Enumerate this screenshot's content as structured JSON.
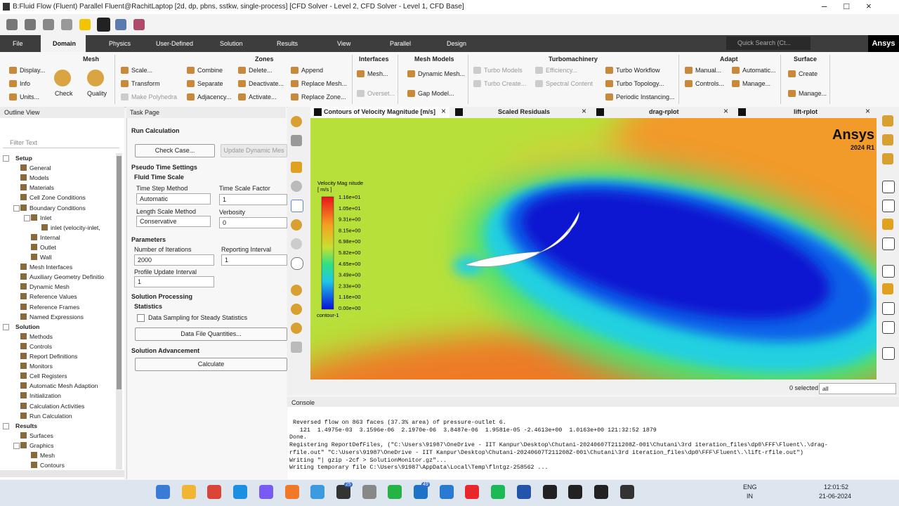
{
  "title_bar": {
    "title": "B:Fluid Flow (Fluent) Parallel Fluent@RachitLaptop  [2d, dp, pbns, sstkw, single-process] [CFD Solver - Level 2, CFD Solver - Level 1, CFD Base]"
  },
  "ribbon_tabs": [
    "File",
    "Domain",
    "Physics",
    "User-Defined",
    "Solution",
    "Results",
    "View",
    "Parallel",
    "Design"
  ],
  "search": "Quick Search (Ct...",
  "brand": "Ansys",
  "ribbon": {
    "groups": [
      {
        "title": "Mesh",
        "items": [
          "Display...",
          "Info",
          "Units...",
          "Check",
          "Quality"
        ]
      },
      {
        "title": "Zones",
        "items": [
          "Scale...",
          "Transform",
          "Make Polyhedra",
          "Combine",
          "Separate",
          "Adjacency...",
          "Delete...",
          "Deactivate...",
          "Activate...",
          "Append",
          "Replace Mesh...",
          "Replace Zone..."
        ]
      },
      {
        "title": "Interfaces",
        "items": [
          "Mesh...",
          "Overset..."
        ]
      },
      {
        "title": "Mesh Models",
        "items": [
          "Dynamic Mesh...",
          "Gap Model..."
        ]
      },
      {
        "title": "Turbomachinery",
        "items": [
          "Turbo Models",
          "Turbo Create...",
          "Efficiency...",
          "Spectral Content",
          "Turbo Workflow",
          "Turbo Topology...",
          "Periodic Instancing..."
        ]
      },
      {
        "title": "Adapt",
        "items": [
          "Manual...",
          "Controls...",
          "Automatic...",
          "Manage..."
        ]
      },
      {
        "title": "Surface",
        "items": [
          "Create",
          "Manage..."
        ]
      }
    ]
  },
  "outline": {
    "title": "Outline View",
    "filter": "Filter Text",
    "tree": [
      {
        "label": "Setup",
        "children": [
          {
            "label": "General"
          },
          {
            "label": "Models"
          },
          {
            "label": "Materials"
          },
          {
            "label": "Cell Zone Conditions"
          },
          {
            "label": "Boundary Conditions",
            "children": [
              {
                "label": "Inlet",
                "children": [
                  {
                    "label": "inlet (velocity-inlet,"
                  }
                ]
              },
              {
                "label": "Internal"
              },
              {
                "label": "Outlet"
              },
              {
                "label": "Wall"
              }
            ]
          },
          {
            "label": "Mesh Interfaces"
          },
          {
            "label": "Auxiliary Geometry Definitio"
          },
          {
            "label": "Dynamic Mesh"
          },
          {
            "label": "Reference Values"
          },
          {
            "label": "Reference Frames"
          },
          {
            "label": "Named Expressions"
          }
        ]
      },
      {
        "label": "Solution",
        "children": [
          {
            "label": "Methods"
          },
          {
            "label": "Controls"
          },
          {
            "label": "Report Definitions"
          },
          {
            "label": "Monitors"
          },
          {
            "label": "Cell Registers"
          },
          {
            "label": "Automatic Mesh Adaption"
          },
          {
            "label": "Initialization"
          },
          {
            "label": "Calculation Activities"
          },
          {
            "label": "Run Calculation"
          }
        ]
      },
      {
        "label": "Results",
        "children": [
          {
            "label": "Surfaces"
          },
          {
            "label": "Graphics",
            "children": [
              {
                "label": "Mesh"
              },
              {
                "label": "Contours"
              }
            ]
          }
        ]
      }
    ]
  },
  "task_page": {
    "title": "Task Page",
    "heading": "Run Calculation",
    "check_case": "Check Case...",
    "update_dynamic": "Update Dynamic Mes",
    "pseudo": "Pseudo Time Settings",
    "fluid_time_scale": "Fluid Time Scale",
    "time_step_method": "Time Step Method",
    "time_step_value": "Automatic",
    "time_scale_factor": "Time Scale Factor",
    "time_scale_value": "1",
    "length_scale_method": "Length Scale Method",
    "length_scale_value": "Conservative",
    "verbosity": "Verbosity",
    "verbosity_value": "0",
    "parameters": "Parameters",
    "iterations": "Number of Iterations",
    "iterations_value": "2000",
    "reporting": "Reporting Interval",
    "reporting_value": "1",
    "profile": "Profile Update Interval",
    "profile_value": "1",
    "solution_processing": "Solution Processing",
    "statistics": "Statistics",
    "data_sampling": "Data Sampling for Steady Statistics",
    "data_file": "Data File Quantities...",
    "advancement": "Solution Advancement",
    "calculate": "Calculate"
  },
  "graphics_tabs": [
    "Contours of Velocity Magnitude [m/s]",
    "Scaled Residuals",
    "drag-rplot",
    "lift-rplot"
  ],
  "legend": {
    "title": "Velocity Mag nitude",
    "unit": "[ m/s ]",
    "labels": [
      "1.16e+01",
      "1.05e+01",
      "9.31e+00",
      "8.15e+00",
      "6.98e+00",
      "5.82e+00",
      "4.65e+00",
      "3.49e+00",
      "2.33e+00",
      "1.16e+00",
      "0.00e+00"
    ],
    "footer": "contour-1"
  },
  "watermark": {
    "brand": "Ansys",
    "version": "2024 R1"
  },
  "selection": {
    "count": "0 selected",
    "filter": "all"
  },
  "console": {
    "title": "Console",
    "lines": [
      " Reversed flow on 863 faces (37.3% area) of pressure-outlet 6.",
      "   121  1.4975e-03  3.1596e-06  2.1970e-06  3.8487e-06  1.9581e-05 -2.4613e+00  1.0163e+00 121:32:52 1879",
      "Done.",
      "Registering ReportDefFiles, (\"C:\\Users\\91987\\OneDrive - IIT Kanpur\\Desktop\\Chutani-20240607T211208Z-001\\Chutani\\3rd iteration_files\\dp0\\FFF\\Fluent\\.\\drag-",
      "rfile.out\" \"C:\\Users\\91987\\OneDrive - IIT Kanpur\\Desktop\\Chutani-20240607T211208Z-001\\Chutani\\3rd iteration_files\\dp0\\FFF\\Fluent\\.\\lift-rfile.out\")",
      "Writing \"| gzip -2cf > SolutionMonitor.gz\"...",
      "Writing temporary file C:\\Users\\91987\\AppData\\Local\\Temp\\flntgz-258562 ..."
    ]
  },
  "taskbar": {
    "badges": [
      "25",
      "49"
    ],
    "lang": "ENG",
    "region": "IN",
    "time": "12:01:52",
    "date": "21-06-2024"
  }
}
